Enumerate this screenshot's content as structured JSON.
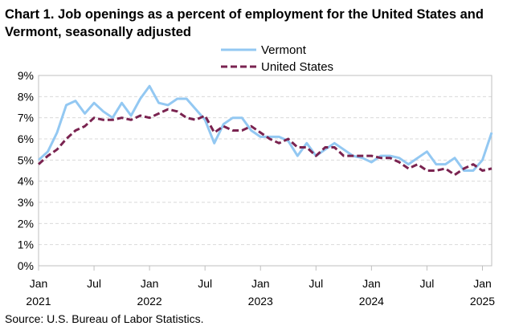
{
  "chart_data": {
    "type": "line",
    "title": "Chart 1. Job openings as a percent of employment for the United States and Vermont, seasonally adjusted",
    "xlabel": "",
    "ylabel": "",
    "ylim": [
      0,
      9
    ],
    "y_ticks": [
      "0%",
      "1%",
      "2%",
      "3%",
      "4%",
      "5%",
      "6%",
      "7%",
      "8%",
      "9%"
    ],
    "x_ticks": [
      {
        "index": 0,
        "month": "Jan",
        "year": "2021"
      },
      {
        "index": 6,
        "month": "Jul",
        "year": ""
      },
      {
        "index": 12,
        "month": "Jan",
        "year": "2022"
      },
      {
        "index": 18,
        "month": "Jul",
        "year": ""
      },
      {
        "index": 24,
        "month": "Jan",
        "year": "2023"
      },
      {
        "index": 30,
        "month": "Jul",
        "year": ""
      },
      {
        "index": 36,
        "month": "Jan",
        "year": "2024"
      },
      {
        "index": 42,
        "month": "Jul",
        "year": ""
      },
      {
        "index": 48,
        "month": "Jan",
        "year": "2025"
      }
    ],
    "grid": "horizontal dashed",
    "legend_position": "top-center",
    "series": [
      {
        "name": "Vermont",
        "color": "#93c8f2",
        "style": "solid",
        "values": [
          5.0,
          5.4,
          6.3,
          7.6,
          7.8,
          7.2,
          7.7,
          7.3,
          7.0,
          7.7,
          7.1,
          7.9,
          8.5,
          7.7,
          7.6,
          7.9,
          7.9,
          7.4,
          6.9,
          5.8,
          6.7,
          7.0,
          7.0,
          6.4,
          6.1,
          6.1,
          6.1,
          5.9,
          5.2,
          5.8,
          5.2,
          5.5,
          5.8,
          5.5,
          5.2,
          5.1,
          4.9,
          5.2,
          5.2,
          5.1,
          4.8,
          5.1,
          5.4,
          4.8,
          4.8,
          5.1,
          4.5,
          4.5,
          5.0,
          6.3
        ]
      },
      {
        "name": "United States",
        "color": "#7a2350",
        "style": "dashed",
        "values": [
          4.8,
          5.2,
          5.5,
          6.0,
          6.4,
          6.6,
          7.0,
          6.9,
          6.9,
          7.0,
          6.9,
          7.1,
          7.0,
          7.2,
          7.4,
          7.3,
          7.0,
          6.9,
          7.1,
          6.3,
          6.6,
          6.4,
          6.4,
          6.6,
          6.3,
          6.0,
          5.8,
          6.0,
          5.6,
          5.6,
          5.2,
          5.6,
          5.6,
          5.2,
          5.2,
          5.2,
          5.2,
          5.1,
          5.1,
          4.9,
          4.6,
          4.8,
          4.5,
          4.5,
          4.6,
          4.3,
          4.6,
          4.8,
          4.5,
          4.6
        ]
      }
    ]
  },
  "source": "Source: U.S. Bureau of Labor Statistics."
}
